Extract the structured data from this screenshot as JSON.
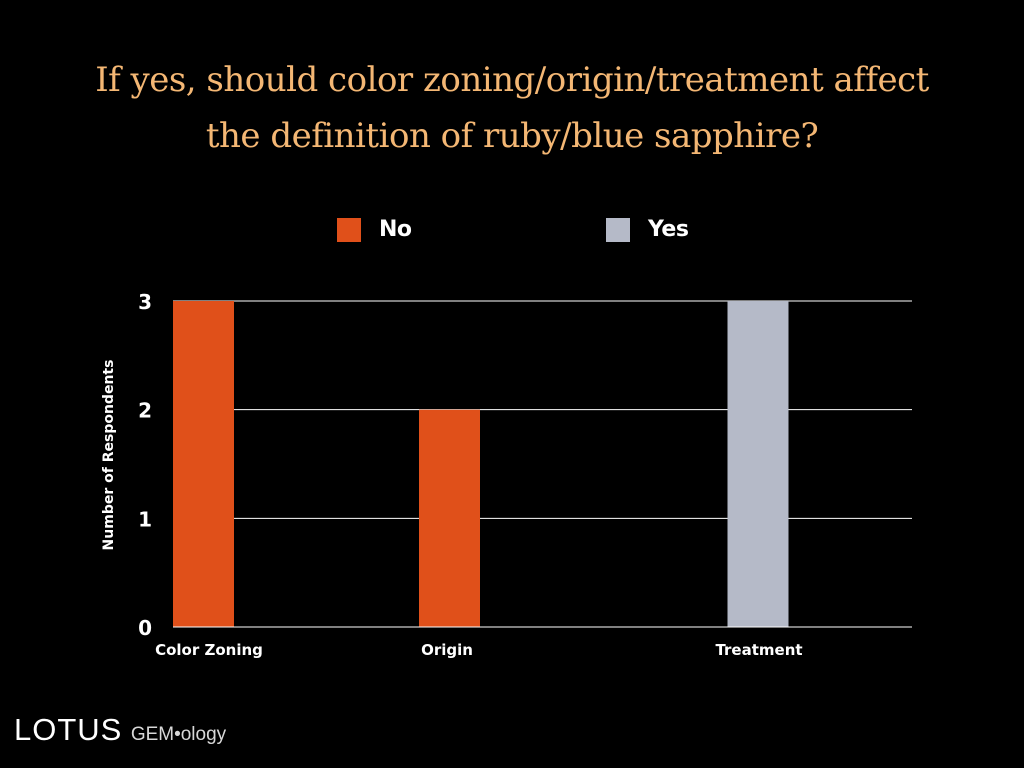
{
  "slide": {
    "title_line1": "If yes, should color zoning/origin/treatment affect",
    "title_line2": "the definition of ruby/blue sapphire?",
    "title_color": "#f4b774",
    "background": "#000000"
  },
  "legend": {
    "items": [
      {
        "label": "No",
        "color": "#e0501a"
      },
      {
        "label": "Yes",
        "color": "#b5bac8"
      }
    ],
    "placement": "top-center"
  },
  "logo": {
    "main": "LOTUS",
    "sub": "GEM•ology"
  },
  "chart_data": {
    "type": "bar",
    "categories": [
      "Color Zoning",
      "Origin",
      "Treatment"
    ],
    "series": [
      {
        "name": "No",
        "values": [
          3,
          2,
          0
        ],
        "color": "#e0501a"
      },
      {
        "name": "Yes",
        "values": [
          0,
          0,
          3
        ],
        "color": "#b5bac8"
      }
    ],
    "title": "If yes, should color zoning/origin/treatment affect the definition of ruby/blue sapphire?",
    "xlabel": "",
    "ylabel": "Number of Respondents",
    "ylim": [
      0,
      3
    ],
    "yticks": [
      "0",
      "1",
      "2",
      "3"
    ],
    "grid": true,
    "legend_placement": "top-center"
  }
}
